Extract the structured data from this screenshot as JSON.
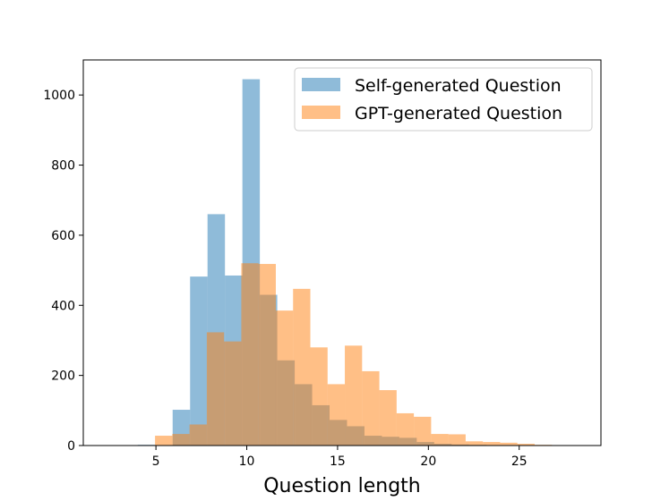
{
  "chart_data": {
    "type": "bar",
    "subtype": "overlaid-histogram",
    "title": "",
    "xlabel": "Question length",
    "ylabel": "",
    "xlim": [
      1.0,
      29.5
    ],
    "ylim": [
      0,
      1100
    ],
    "xticks": [
      5,
      10,
      15,
      20,
      25
    ],
    "yticks": [
      0,
      200,
      400,
      600,
      800,
      1000
    ],
    "grid": false,
    "legend_position": "top-right",
    "series": [
      {
        "name": "Self-generated Question",
        "color": "#1f77b4",
        "alpha": 0.5,
        "bins": [
          {
            "x0": 4.0,
            "x1": 4.96,
            "count": 2
          },
          {
            "x0": 4.96,
            "x1": 5.92,
            "count": 0
          },
          {
            "x0": 5.92,
            "x1": 6.88,
            "count": 102
          },
          {
            "x0": 6.88,
            "x1": 7.84,
            "count": 482
          },
          {
            "x0": 7.84,
            "x1": 8.8,
            "count": 660
          },
          {
            "x0": 8.8,
            "x1": 9.76,
            "count": 485
          },
          {
            "x0": 9.76,
            "x1": 10.72,
            "count": 1045
          },
          {
            "x0": 10.72,
            "x1": 11.68,
            "count": 430
          },
          {
            "x0": 11.68,
            "x1": 12.64,
            "count": 243
          },
          {
            "x0": 12.64,
            "x1": 13.6,
            "count": 175
          },
          {
            "x0": 13.6,
            "x1": 14.56,
            "count": 115
          },
          {
            "x0": 14.56,
            "x1": 15.52,
            "count": 73
          },
          {
            "x0": 15.52,
            "x1": 16.48,
            "count": 55
          },
          {
            "x0": 16.48,
            "x1": 17.44,
            "count": 28
          },
          {
            "x0": 17.44,
            "x1": 18.4,
            "count": 25
          },
          {
            "x0": 18.4,
            "x1": 19.36,
            "count": 22
          },
          {
            "x0": 19.36,
            "x1": 20.32,
            "count": 10
          },
          {
            "x0": 20.32,
            "x1": 21.28,
            "count": 5
          },
          {
            "x0": 21.28,
            "x1": 22.24,
            "count": 3
          },
          {
            "x0": 22.24,
            "x1": 23.2,
            "count": 2
          },
          {
            "x0": 23.2,
            "x1": 24.16,
            "count": 1
          },
          {
            "x0": 24.16,
            "x1": 25.12,
            "count": 1
          }
        ]
      },
      {
        "name": "GPT-generated Question",
        "color": "#ff7f0e",
        "alpha": 0.5,
        "bins": [
          {
            "x0": 4.95,
            "x1": 5.9,
            "count": 28
          },
          {
            "x0": 5.9,
            "x1": 6.85,
            "count": 33
          },
          {
            "x0": 6.85,
            "x1": 7.8,
            "count": 60
          },
          {
            "x0": 7.8,
            "x1": 8.75,
            "count": 323
          },
          {
            "x0": 8.75,
            "x1": 9.7,
            "count": 297
          },
          {
            "x0": 9.7,
            "x1": 10.65,
            "count": 520
          },
          {
            "x0": 10.65,
            "x1": 11.6,
            "count": 518
          },
          {
            "x0": 11.6,
            "x1": 12.55,
            "count": 385
          },
          {
            "x0": 12.55,
            "x1": 13.5,
            "count": 447
          },
          {
            "x0": 13.5,
            "x1": 14.45,
            "count": 280
          },
          {
            "x0": 14.45,
            "x1": 15.4,
            "count": 175
          },
          {
            "x0": 15.4,
            "x1": 16.35,
            "count": 285
          },
          {
            "x0": 16.35,
            "x1": 17.3,
            "count": 212
          },
          {
            "x0": 17.3,
            "x1": 18.25,
            "count": 158
          },
          {
            "x0": 18.25,
            "x1": 19.2,
            "count": 92
          },
          {
            "x0": 19.2,
            "x1": 20.15,
            "count": 82
          },
          {
            "x0": 20.15,
            "x1": 21.1,
            "count": 33
          },
          {
            "x0": 21.1,
            "x1": 22.05,
            "count": 32
          },
          {
            "x0": 22.05,
            "x1": 23.0,
            "count": 12
          },
          {
            "x0": 23.0,
            "x1": 23.95,
            "count": 10
          },
          {
            "x0": 23.95,
            "x1": 24.9,
            "count": 8
          },
          {
            "x0": 24.9,
            "x1": 25.85,
            "count": 5
          },
          {
            "x0": 25.85,
            "x1": 26.8,
            "count": 2
          },
          {
            "x0": 26.8,
            "x1": 27.75,
            "count": 1
          }
        ]
      }
    ]
  }
}
